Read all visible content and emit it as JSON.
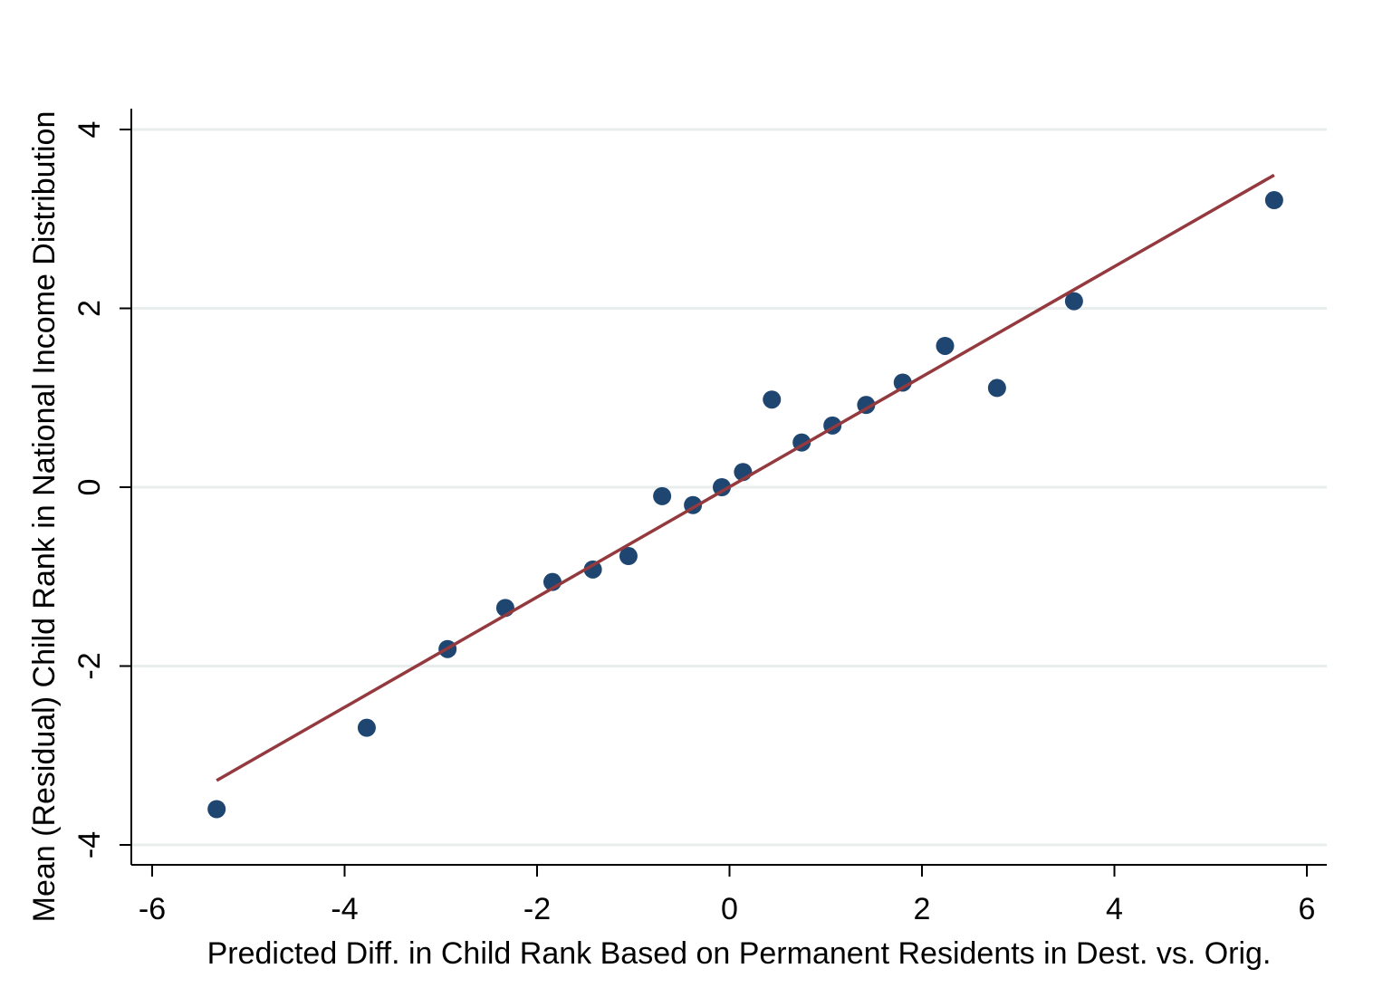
{
  "chart_data": {
    "type": "scatter",
    "title": "",
    "xlabel": "Predicted Diff. in Child Rank Based on Permanent Residents in Dest. vs. Orig.",
    "ylabel": "Mean (Residual) Child Rank in National Income Distribution",
    "xlim": [
      -6.2,
      6.2
    ],
    "ylim": [
      -4.2,
      4.2
    ],
    "xticks": [
      -6,
      -4,
      -2,
      0,
      2,
      4,
      6
    ],
    "xtick_labels": [
      "-6",
      "-4",
      "-2",
      "0",
      "2",
      "4",
      "6"
    ],
    "yticks": [
      -4,
      -2,
      0,
      2,
      4
    ],
    "ytick_labels": [
      "-4",
      "-2",
      "0",
      "2",
      "4"
    ],
    "grid": "horizontal",
    "legend": "none",
    "colors": {
      "points": "#1f4670",
      "fit_line": "#943a3f",
      "grid": "#e8eeee",
      "axis": "#000000"
    },
    "points": [
      {
        "x": -5.33,
        "y": -3.6
      },
      {
        "x": -3.77,
        "y": -2.69
      },
      {
        "x": -2.93,
        "y": -1.81
      },
      {
        "x": -2.33,
        "y": -1.35
      },
      {
        "x": -1.84,
        "y": -1.06
      },
      {
        "x": -1.42,
        "y": -0.92
      },
      {
        "x": -1.05,
        "y": -0.77
      },
      {
        "x": -0.7,
        "y": -0.1
      },
      {
        "x": -0.38,
        "y": -0.2
      },
      {
        "x": -0.08,
        "y": 0.0
      },
      {
        "x": 0.14,
        "y": 0.17
      },
      {
        "x": 0.44,
        "y": 0.98
      },
      {
        "x": 0.75,
        "y": 0.5
      },
      {
        "x": 1.07,
        "y": 0.69
      },
      {
        "x": 1.42,
        "y": 0.92
      },
      {
        "x": 1.8,
        "y": 1.17
      },
      {
        "x": 2.24,
        "y": 1.58
      },
      {
        "x": 2.78,
        "y": 1.11
      },
      {
        "x": 3.58,
        "y": 2.08
      },
      {
        "x": 5.66,
        "y": 3.21
      }
    ],
    "fit_line": {
      "x": [
        -5.33,
        5.66
      ],
      "y": [
        -3.28,
        3.49
      ]
    }
  }
}
